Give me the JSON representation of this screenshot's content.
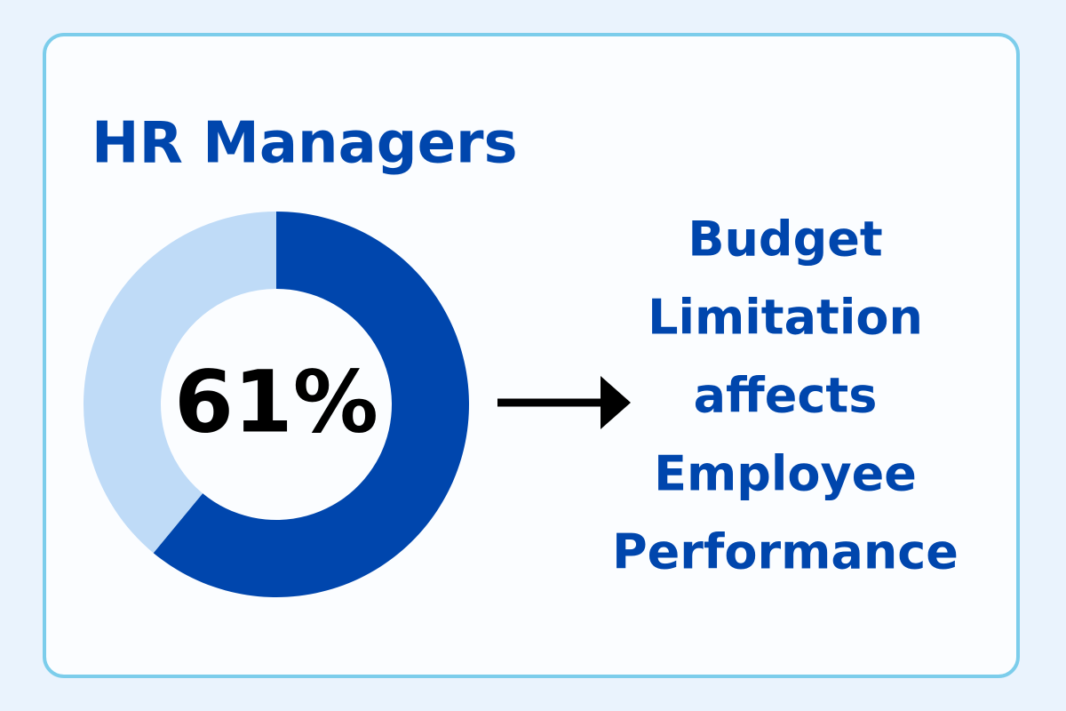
{
  "chart_data": {
    "type": "donut",
    "title": "HR Managers",
    "values": [
      61,
      39
    ],
    "value_labels": [
      "61%",
      null
    ],
    "colors": [
      "#0046ad",
      "#bfdbf7"
    ],
    "annotation": [
      "Budget",
      "Limitation",
      "affects",
      "Employee",
      "Performance"
    ]
  }
}
